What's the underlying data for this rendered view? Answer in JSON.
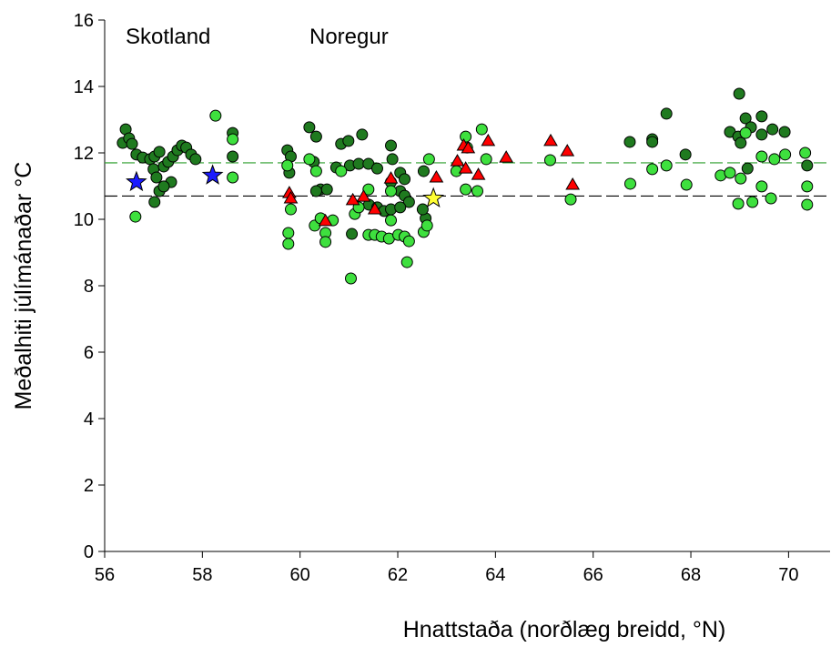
{
  "chart_data": {
    "type": "scatter",
    "xlabel": "Hnattstaða (norðlæg breidd, °N)",
    "ylabel": "Meðalhiti júlímánaðar °C",
    "xlim": [
      56,
      70.85
    ],
    "ylim": [
      0,
      16
    ],
    "xticks": [
      56,
      58,
      60,
      62,
      64,
      66,
      68,
      70
    ],
    "yticks": [
      0,
      2,
      4,
      6,
      8,
      10,
      12,
      14,
      16
    ],
    "annotations": [
      "Skotland",
      "Noregur"
    ],
    "hlines": [
      {
        "value": 11.7,
        "color": "#2a9d2a"
      },
      {
        "value": 10.7,
        "color": "#000000"
      }
    ],
    "series": [
      {
        "marker": "circle",
        "color": "#1f7a1f",
        "x": [
          56.43,
          56.37,
          56.5,
          56.56,
          56.65,
          56.78,
          56.93,
          57.02,
          57.12,
          57.0,
          57.06,
          57.21,
          57.3,
          57.4,
          57.49,
          57.58,
          57.67,
          57.77,
          57.86,
          57.02,
          57.12,
          57.36,
          57.21,
          58.62,
          58.62,
          59.74,
          59.81,
          60.19,
          60.33,
          60.84,
          60.99,
          61.27,
          59.78,
          60.28,
          60.74,
          61.02,
          61.2,
          61.4,
          61.58,
          61.86,
          61.89,
          62.05,
          62.14,
          61.86,
          60.42,
          60.55,
          60.33,
          61.06,
          61.41,
          61.58,
          61.72,
          61.86,
          62.05,
          62.14,
          62.23,
          62.05,
          62.53,
          62.57,
          62.51,
          66.75,
          67.21,
          67.21,
          67.5,
          67.89,
          68.99,
          69.12,
          69.45,
          68.8,
          68.97,
          69.02,
          69.23,
          69.45,
          69.67,
          69.92,
          69.16,
          70.38
        ],
        "values": [
          12.71,
          12.3,
          12.44,
          12.27,
          11.95,
          11.86,
          11.81,
          11.89,
          12.03,
          11.51,
          11.26,
          11.59,
          11.73,
          11.89,
          12.08,
          12.22,
          12.16,
          11.95,
          11.81,
          10.52,
          10.85,
          11.12,
          10.99,
          12.6,
          11.89,
          12.08,
          11.89,
          12.77,
          12.49,
          12.27,
          12.36,
          12.55,
          11.4,
          11.73,
          11.56,
          11.62,
          11.67,
          11.67,
          11.53,
          12.22,
          11.81,
          11.4,
          11.21,
          11.12,
          10.9,
          10.9,
          10.85,
          9.56,
          10.44,
          10.36,
          10.25,
          10.3,
          10.85,
          10.71,
          10.52,
          10.36,
          11.45,
          10.03,
          10.3,
          12.33,
          12.41,
          12.33,
          13.18,
          11.95,
          13.78,
          13.04,
          13.1,
          12.63,
          12.49,
          12.3,
          12.77,
          12.55,
          12.71,
          12.63,
          11.53,
          11.62
        ]
      },
      {
        "marker": "circle",
        "color": "#3ee03e",
        "x": [
          56.63,
          58.27,
          58.62,
          58.62,
          59.74,
          59.76,
          59.76,
          59.81,
          60.19,
          60.33,
          60.3,
          60.42,
          60.52,
          60.52,
          60.67,
          60.84,
          61.04,
          61.12,
          61.2,
          61.4,
          61.4,
          61.53,
          61.67,
          61.82,
          61.86,
          61.86,
          62.01,
          62.14,
          62.19,
          62.23,
          62.53,
          62.6,
          62.64,
          63.39,
          63.42,
          63.72,
          63.81,
          63.39,
          63.63,
          63.2,
          65.12,
          65.54,
          66.76,
          67.21,
          67.5,
          67.91,
          68.61,
          68.8,
          68.97,
          69.02,
          69.26,
          69.45,
          69.45,
          69.64,
          69.71,
          69.93,
          70.34,
          70.38,
          70.38,
          69.12
        ],
        "values": [
          10.08,
          13.12,
          12.41,
          11.26,
          11.62,
          9.59,
          9.26,
          10.3,
          11.81,
          11.45,
          9.81,
          10.03,
          9.59,
          9.32,
          9.97,
          11.45,
          8.22,
          10.16,
          10.36,
          10.9,
          9.53,
          9.53,
          9.48,
          9.42,
          9.97,
          10.85,
          9.53,
          9.48,
          8.71,
          9.34,
          9.62,
          9.81,
          11.81,
          12.49,
          12.16,
          12.71,
          11.81,
          10.9,
          10.85,
          11.45,
          11.78,
          10.6,
          11.07,
          11.51,
          11.62,
          11.04,
          11.32,
          11.4,
          10.47,
          11.23,
          10.52,
          11.89,
          10.99,
          10.63,
          11.81,
          11.95,
          12.0,
          10.99,
          10.44,
          12.6
        ]
      },
      {
        "marker": "triangle",
        "color": "#ff0000",
        "x": [
          59.78,
          59.81,
          60.52,
          61.08,
          61.3,
          61.53,
          61.86,
          62.79,
          63.22,
          63.35,
          63.44,
          63.39,
          63.65,
          63.85,
          64.22,
          65.13,
          65.47,
          65.58
        ],
        "values": [
          10.79,
          10.63,
          9.95,
          10.58,
          10.68,
          10.3,
          11.23,
          11.26,
          11.75,
          12.22,
          12.14,
          11.53,
          11.34,
          12.36,
          11.86,
          12.36,
          12.05,
          11.04
        ]
      },
      {
        "marker": "star",
        "color": "#1a1aff",
        "x": [
          56.65,
          58.21
        ],
        "values": [
          11.12,
          11.32
        ]
      },
      {
        "marker": "star",
        "color": "#ffff33",
        "x": [
          62.73
        ],
        "values": [
          10.63
        ]
      }
    ]
  }
}
